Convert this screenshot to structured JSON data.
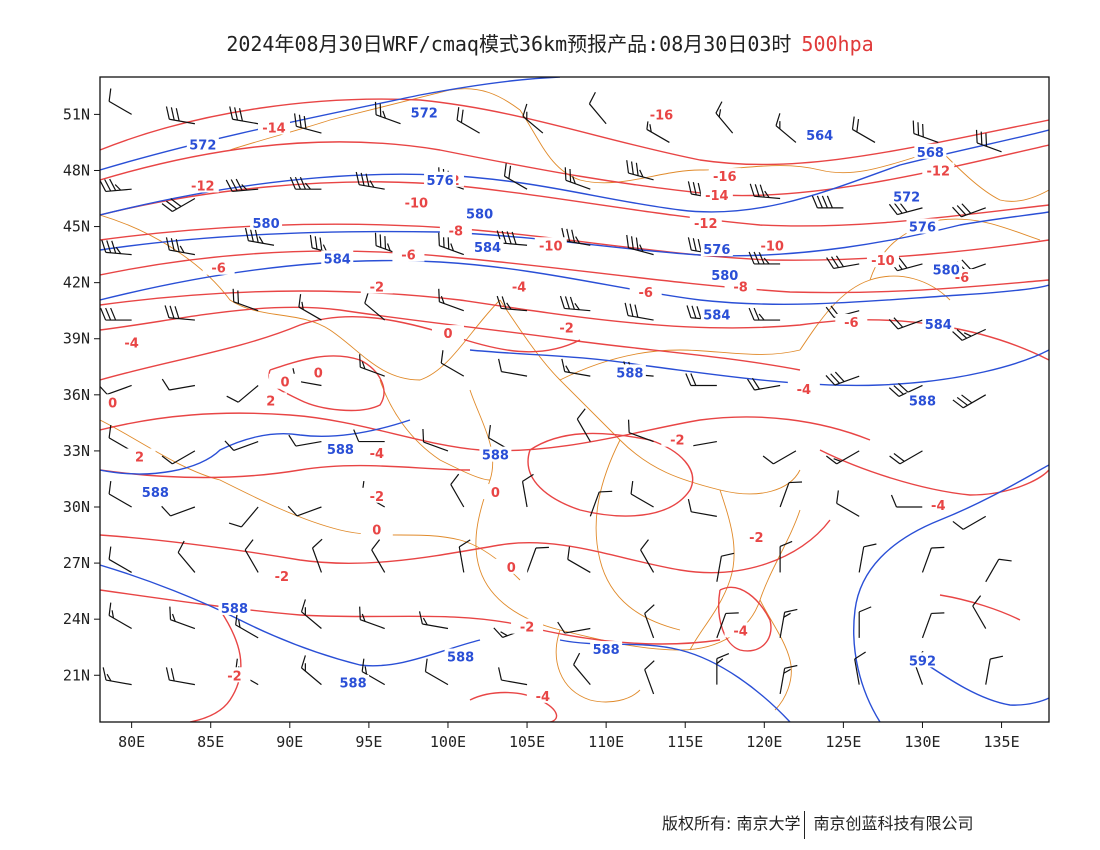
{
  "title": {
    "main": "2024年08月30日WRF/cmaq模式36km预报产品:08月30日03时",
    "level": "500hpa",
    "level_color": "#e03a3a"
  },
  "colors": {
    "temperature": "#e84545",
    "height": "#2a4fd6",
    "boundary": "#e08a2a",
    "wind": "#111111"
  },
  "axes": {
    "lon_ticks": [
      "80E",
      "85E",
      "90E",
      "95E",
      "100E",
      "105E",
      "110E",
      "115E",
      "120E",
      "125E",
      "130E",
      "135E"
    ],
    "lat_ticks": [
      "51N",
      "48N",
      "45N",
      "42N",
      "39N",
      "36N",
      "33N",
      "30N",
      "27N",
      "24N",
      "21N"
    ]
  },
  "chart_data": {
    "type": "contour",
    "temperature_labels": [
      {
        "text": "-14",
        "lon": 89.0,
        "lat": 50.3
      },
      {
        "text": "-12",
        "lon": 100.0,
        "lat": 47.5
      },
      {
        "text": "-12",
        "lon": 84.5,
        "lat": 47.2
      },
      {
        "text": "-10",
        "lon": 98.0,
        "lat": 46.3
      },
      {
        "text": "-8",
        "lon": 100.5,
        "lat": 44.8
      },
      {
        "text": "-6",
        "lon": 97.5,
        "lat": 43.5
      },
      {
        "text": "-6",
        "lon": 85.5,
        "lat": 42.8
      },
      {
        "text": "-4",
        "lon": 104.5,
        "lat": 41.8
      },
      {
        "text": "-2",
        "lon": 95.5,
        "lat": 41.8
      },
      {
        "text": "-10",
        "lon": 106.5,
        "lat": 44.0
      },
      {
        "text": "-16",
        "lon": 113.5,
        "lat": 51.0
      },
      {
        "text": "-16",
        "lon": 117.5,
        "lat": 47.7
      },
      {
        "text": "-14",
        "lon": 117.0,
        "lat": 46.7
      },
      {
        "text": "-12",
        "lon": 116.3,
        "lat": 45.2
      },
      {
        "text": "-12",
        "lon": 131.0,
        "lat": 48.0
      },
      {
        "text": "-10",
        "lon": 120.5,
        "lat": 44.0
      },
      {
        "text": "-10",
        "lon": 127.5,
        "lat": 43.2
      },
      {
        "text": "-8",
        "lon": 118.5,
        "lat": 41.8
      },
      {
        "text": "-6",
        "lon": 112.5,
        "lat": 41.5
      },
      {
        "text": "-6",
        "lon": 132.5,
        "lat": 42.3
      },
      {
        "text": "-6",
        "lon": 125.5,
        "lat": 39.9
      },
      {
        "text": "-4",
        "lon": 80.0,
        "lat": 38.8
      },
      {
        "text": "-2",
        "lon": 107.5,
        "lat": 39.6
      },
      {
        "text": "-4",
        "lon": 122.5,
        "lat": 36.3
      },
      {
        "text": "-2",
        "lon": 114.5,
        "lat": 33.6
      },
      {
        "text": "-4",
        "lon": 95.5,
        "lat": 32.9
      },
      {
        "text": "-2",
        "lon": 95.5,
        "lat": 30.6
      },
      {
        "text": "-2",
        "lon": 119.5,
        "lat": 28.4
      },
      {
        "text": "-2",
        "lon": 89.5,
        "lat": 26.3
      },
      {
        "text": "-2",
        "lon": 105.0,
        "lat": 23.6
      },
      {
        "text": "-4",
        "lon": 118.5,
        "lat": 23.4
      },
      {
        "text": "-2",
        "lon": 86.5,
        "lat": 21.0
      },
      {
        "text": "-4",
        "lon": 106.0,
        "lat": 19.9
      },
      {
        "text": "-4",
        "lon": 131.0,
        "lat": 30.1
      },
      {
        "text": "0",
        "lon": 100.0,
        "lat": 39.3
      },
      {
        "text": "0",
        "lon": 91.8,
        "lat": 37.2
      },
      {
        "text": "0",
        "lon": 89.7,
        "lat": 36.7
      },
      {
        "text": "0",
        "lon": 78.8,
        "lat": 35.6
      },
      {
        "text": "2",
        "lon": 88.8,
        "lat": 35.7
      },
      {
        "text": "2",
        "lon": 80.5,
        "lat": 32.7
      },
      {
        "text": "0",
        "lon": 103.0,
        "lat": 30.8
      },
      {
        "text": "0",
        "lon": 104.0,
        "lat": 26.8
      },
      {
        "text": "0",
        "lon": 95.5,
        "lat": 28.8
      }
    ],
    "height_labels": [
      {
        "text": "572",
        "lon": 98.5,
        "lat": 51.1
      },
      {
        "text": "572",
        "lon": 84.5,
        "lat": 49.4
      },
      {
        "text": "576",
        "lon": 99.5,
        "lat": 47.5
      },
      {
        "text": "580",
        "lon": 102.0,
        "lat": 45.7
      },
      {
        "text": "580",
        "lon": 88.5,
        "lat": 45.2
      },
      {
        "text": "584",
        "lon": 93.0,
        "lat": 43.3
      },
      {
        "text": "584",
        "lon": 102.5,
        "lat": 43.9
      },
      {
        "text": "564",
        "lon": 123.5,
        "lat": 49.9
      },
      {
        "text": "568",
        "lon": 130.5,
        "lat": 49.0
      },
      {
        "text": "572",
        "lon": 129.0,
        "lat": 46.6
      },
      {
        "text": "576",
        "lon": 130.0,
        "lat": 45.0
      },
      {
        "text": "576",
        "lon": 117.0,
        "lat": 43.8
      },
      {
        "text": "580",
        "lon": 117.5,
        "lat": 42.4
      },
      {
        "text": "580",
        "lon": 131.5,
        "lat": 42.7
      },
      {
        "text": "584",
        "lon": 117.0,
        "lat": 40.3
      },
      {
        "text": "584",
        "lon": 131.0,
        "lat": 39.8
      },
      {
        "text": "588",
        "lon": 111.5,
        "lat": 37.2
      },
      {
        "text": "588",
        "lon": 130.0,
        "lat": 35.7
      },
      {
        "text": "588",
        "lon": 93.2,
        "lat": 33.1
      },
      {
        "text": "588",
        "lon": 103.0,
        "lat": 32.8
      },
      {
        "text": "588",
        "lon": 81.5,
        "lat": 30.8
      },
      {
        "text": "588",
        "lon": 86.5,
        "lat": 24.6
      },
      {
        "text": "588",
        "lon": 100.8,
        "lat": 22.0
      },
      {
        "text": "588",
        "lon": 110.0,
        "lat": 22.4
      },
      {
        "text": "588",
        "lon": 94.0,
        "lat": 20.6
      },
      {
        "text": "592",
        "lon": 130.0,
        "lat": 21.8
      }
    ],
    "winds": [
      {
        "lon": 80,
        "lat": 51,
        "dir": 300,
        "spd": 8
      },
      {
        "lon": 84,
        "lat": 50.5,
        "dir": 280,
        "spd": 24
      },
      {
        "lon": 88,
        "lat": 50.5,
        "dir": 280,
        "spd": 24
      },
      {
        "lon": 92,
        "lat": 50,
        "dir": 285,
        "spd": 24
      },
      {
        "lon": 97,
        "lat": 50.5,
        "dir": 290,
        "spd": 20
      },
      {
        "lon": 102,
        "lat": 50,
        "dir": 300,
        "spd": 16
      },
      {
        "lon": 106,
        "lat": 50,
        "dir": 310,
        "spd": 12
      },
      {
        "lon": 110,
        "lat": 50.5,
        "dir": 320,
        "spd": 8
      },
      {
        "lon": 114,
        "lat": 49.5,
        "dir": 300,
        "spd": 12
      },
      {
        "lon": 118,
        "lat": 50,
        "dir": 320,
        "spd": 12
      },
      {
        "lon": 122,
        "lat": 49.5,
        "dir": 310,
        "spd": 12
      },
      {
        "lon": 127,
        "lat": 49.5,
        "dir": 300,
        "spd": 16
      },
      {
        "lon": 131,
        "lat": 49.5,
        "dir": 290,
        "spd": 24
      },
      {
        "lon": 135,
        "lat": 49,
        "dir": 290,
        "spd": 24
      },
      {
        "lon": 80,
        "lat": 47,
        "dir": 265,
        "spd": 28
      },
      {
        "lon": 84,
        "lat": 46.5,
        "dir": 240,
        "spd": 24
      },
      {
        "lon": 88,
        "lat": 47,
        "dir": 265,
        "spd": 28
      },
      {
        "lon": 92,
        "lat": 47,
        "dir": 270,
        "spd": 28
      },
      {
        "lon": 96,
        "lat": 47,
        "dir": 280,
        "spd": 28
      },
      {
        "lon": 101,
        "lat": 47,
        "dir": 290,
        "spd": 28
      },
      {
        "lon": 105,
        "lat": 47,
        "dir": 300,
        "spd": 16
      },
      {
        "lon": 109,
        "lat": 47,
        "dir": 290,
        "spd": 20
      },
      {
        "lon": 113,
        "lat": 47.5,
        "dir": 285,
        "spd": 28
      },
      {
        "lon": 117,
        "lat": 46.5,
        "dir": 280,
        "spd": 28
      },
      {
        "lon": 121,
        "lat": 46.5,
        "dir": 275,
        "spd": 28
      },
      {
        "lon": 125,
        "lat": 46,
        "dir": 270,
        "spd": 32
      },
      {
        "lon": 130,
        "lat": 46,
        "dir": 255,
        "spd": 24
      },
      {
        "lon": 134,
        "lat": 46,
        "dir": 250,
        "spd": 24
      },
      {
        "lon": 80,
        "lat": 43.5,
        "dir": 275,
        "spd": 28
      },
      {
        "lon": 84,
        "lat": 43.5,
        "dir": 280,
        "spd": 28
      },
      {
        "lon": 89,
        "lat": 44,
        "dir": 280,
        "spd": 28
      },
      {
        "lon": 93,
        "lat": 43.5,
        "dir": 285,
        "spd": 28
      },
      {
        "lon": 97,
        "lat": 43.5,
        "dir": 290,
        "spd": 28
      },
      {
        "lon": 101,
        "lat": 43.5,
        "dir": 290,
        "spd": 28
      },
      {
        "lon": 105,
        "lat": 44,
        "dir": 275,
        "spd": 32
      },
      {
        "lon": 109,
        "lat": 44,
        "dir": 280,
        "spd": 28
      },
      {
        "lon": 113,
        "lat": 43.5,
        "dir": 285,
        "spd": 28
      },
      {
        "lon": 117,
        "lat": 43.5,
        "dir": 280,
        "spd": 28
      },
      {
        "lon": 121,
        "lat": 43,
        "dir": 270,
        "spd": 28
      },
      {
        "lon": 126,
        "lat": 43,
        "dir": 260,
        "spd": 24
      },
      {
        "lon": 130,
        "lat": 43,
        "dir": 255,
        "spd": 24
      },
      {
        "lon": 134,
        "lat": 43,
        "dir": 250,
        "spd": 24
      },
      {
        "lon": 80,
        "lat": 40,
        "dir": 270,
        "spd": 24
      },
      {
        "lon": 84,
        "lat": 40,
        "dir": 275,
        "spd": 24
      },
      {
        "lon": 88,
        "lat": 40.5,
        "dir": 290,
        "spd": 16
      },
      {
        "lon": 92,
        "lat": 40,
        "dir": 300,
        "spd": 12
      },
      {
        "lon": 96,
        "lat": 40,
        "dir": 310,
        "spd": 8
      },
      {
        "lon": 101,
        "lat": 40.5,
        "dir": 290,
        "spd": 12
      },
      {
        "lon": 105,
        "lat": 40.5,
        "dir": 275,
        "spd": 20
      },
      {
        "lon": 109,
        "lat": 40.5,
        "dir": 275,
        "spd": 28
      },
      {
        "lon": 113,
        "lat": 40,
        "dir": 280,
        "spd": 24
      },
      {
        "lon": 117,
        "lat": 40,
        "dir": 275,
        "spd": 24
      },
      {
        "lon": 121,
        "lat": 40,
        "dir": 270,
        "spd": 20
      },
      {
        "lon": 126,
        "lat": 40.5,
        "dir": 255,
        "spd": 16
      },
      {
        "lon": 130,
        "lat": 40,
        "dir": 250,
        "spd": 16
      },
      {
        "lon": 134,
        "lat": 39.5,
        "dir": 245,
        "spd": 20
      },
      {
        "lon": 80,
        "lat": 36.5,
        "dir": 250,
        "spd": 8
      },
      {
        "lon": 84,
        "lat": 36.5,
        "dir": 260,
        "spd": 8
      },
      {
        "lon": 88,
        "lat": 36.5,
        "dir": 230,
        "spd": 8
      },
      {
        "lon": 92,
        "lat": 36.5,
        "dir": 280,
        "spd": 12
      },
      {
        "lon": 96,
        "lat": 37,
        "dir": 290,
        "spd": 12
      },
      {
        "lon": 101,
        "lat": 37,
        "dir": 300,
        "spd": 8
      },
      {
        "lon": 105,
        "lat": 37,
        "dir": 280,
        "spd": 8
      },
      {
        "lon": 109,
        "lat": 37,
        "dir": 280,
        "spd": 12
      },
      {
        "lon": 113,
        "lat": 37,
        "dir": 275,
        "spd": 16
      },
      {
        "lon": 117,
        "lat": 36.5,
        "dir": 270,
        "spd": 16
      },
      {
        "lon": 121,
        "lat": 36.5,
        "dir": 260,
        "spd": 16
      },
      {
        "lon": 126,
        "lat": 37,
        "dir": 250,
        "spd": 24
      },
      {
        "lon": 130,
        "lat": 36.5,
        "dir": 245,
        "spd": 24
      },
      {
        "lon": 134,
        "lat": 36,
        "dir": 240,
        "spd": 24
      },
      {
        "lon": 80,
        "lat": 33,
        "dir": 300,
        "spd": 8
      },
      {
        "lon": 84,
        "lat": 33,
        "dir": 240,
        "spd": 8
      },
      {
        "lon": 88,
        "lat": 33.5,
        "dir": 250,
        "spd": 8
      },
      {
        "lon": 92,
        "lat": 33.5,
        "dir": 260,
        "spd": 8
      },
      {
        "lon": 96,
        "lat": 33.5,
        "dir": 270,
        "spd": 8
      },
      {
        "lon": 100,
        "lat": 33,
        "dir": 290,
        "spd": 8
      },
      {
        "lon": 104,
        "lat": 33,
        "dir": 300,
        "spd": 8
      },
      {
        "lon": 109,
        "lat": 33.5,
        "dir": 330,
        "spd": 8
      },
      {
        "lon": 113,
        "lat": 33.5,
        "dir": 290,
        "spd": 8
      },
      {
        "lon": 117,
        "lat": 33.5,
        "dir": 260,
        "spd": 8
      },
      {
        "lon": 122,
        "lat": 33,
        "dir": 240,
        "spd": 8
      },
      {
        "lon": 126,
        "lat": 33,
        "dir": 240,
        "spd": 12
      },
      {
        "lon": 130,
        "lat": 33,
        "dir": 240,
        "spd": 16
      },
      {
        "lon": 80,
        "lat": 30,
        "dir": 300,
        "spd": 8
      },
      {
        "lon": 84,
        "lat": 30,
        "dir": 250,
        "spd": 8
      },
      {
        "lon": 88,
        "lat": 30,
        "dir": 220,
        "spd": 8
      },
      {
        "lon": 92,
        "lat": 30,
        "dir": 250,
        "spd": 8
      },
      {
        "lon": 96,
        "lat": 30,
        "dir": 300,
        "spd": 8
      },
      {
        "lon": 101,
        "lat": 30,
        "dir": 330,
        "spd": 8
      },
      {
        "lon": 105,
        "lat": 30,
        "dir": 350,
        "spd": 8
      },
      {
        "lon": 109,
        "lat": 29.5,
        "dir": 20,
        "spd": 8
      },
      {
        "lon": 113,
        "lat": 30,
        "dir": 300,
        "spd": 8
      },
      {
        "lon": 117,
        "lat": 29.5,
        "dir": 280,
        "spd": 8
      },
      {
        "lon": 121,
        "lat": 30,
        "dir": 20,
        "spd": 8
      },
      {
        "lon": 126,
        "lat": 29.5,
        "dir": 300,
        "spd": 8
      },
      {
        "lon": 130,
        "lat": 30,
        "dir": 270,
        "spd": 8
      },
      {
        "lon": 134,
        "lat": 29.5,
        "dir": 240,
        "spd": 8
      },
      {
        "lon": 80,
        "lat": 26.5,
        "dir": 300,
        "spd": 8
      },
      {
        "lon": 84,
        "lat": 26.5,
        "dir": 320,
        "spd": 8
      },
      {
        "lon": 88,
        "lat": 26.5,
        "dir": 330,
        "spd": 8
      },
      {
        "lon": 92,
        "lat": 26.5,
        "dir": 340,
        "spd": 8
      },
      {
        "lon": 96,
        "lat": 26.5,
        "dir": 330,
        "spd": 8
      },
      {
        "lon": 101,
        "lat": 26.5,
        "dir": 350,
        "spd": 8
      },
      {
        "lon": 105,
        "lat": 26.5,
        "dir": 20,
        "spd": 8
      },
      {
        "lon": 109,
        "lat": 26.5,
        "dir": 300,
        "spd": 8
      },
      {
        "lon": 113,
        "lat": 26.5,
        "dir": 330,
        "spd": 8
      },
      {
        "lon": 117,
        "lat": 26,
        "dir": 10,
        "spd": 8
      },
      {
        "lon": 121,
        "lat": 26.5,
        "dir": 0,
        "spd": 8
      },
      {
        "lon": 126,
        "lat": 26.5,
        "dir": 10,
        "spd": 8
      },
      {
        "lon": 130,
        "lat": 26.5,
        "dir": 20,
        "spd": 8
      },
      {
        "lon": 134,
        "lat": 26,
        "dir": 30,
        "spd": 8
      },
      {
        "lon": 80,
        "lat": 23.5,
        "dir": 300,
        "spd": 12
      },
      {
        "lon": 84,
        "lat": 23.5,
        "dir": 290,
        "spd": 12
      },
      {
        "lon": 88,
        "lat": 23,
        "dir": 300,
        "spd": 12
      },
      {
        "lon": 92,
        "lat": 23.5,
        "dir": 310,
        "spd": 12
      },
      {
        "lon": 96,
        "lat": 23.5,
        "dir": 290,
        "spd": 12
      },
      {
        "lon": 100,
        "lat": 23.5,
        "dir": 280,
        "spd": 12
      },
      {
        "lon": 105,
        "lat": 23.5,
        "dir": 250,
        "spd": 12
      },
      {
        "lon": 109,
        "lat": 23.5,
        "dir": 260,
        "spd": 8
      },
      {
        "lon": 113,
        "lat": 23,
        "dir": 340,
        "spd": 8
      },
      {
        "lon": 117,
        "lat": 23,
        "dir": 20,
        "spd": 8
      },
      {
        "lon": 121,
        "lat": 23,
        "dir": 10,
        "spd": 12
      },
      {
        "lon": 126,
        "lat": 23,
        "dir": 0,
        "spd": 8
      },
      {
        "lon": 130,
        "lat": 23,
        "dir": 20,
        "spd": 8
      },
      {
        "lon": 134,
        "lat": 23.5,
        "dir": 330,
        "spd": 8
      },
      {
        "lon": 80,
        "lat": 20.5,
        "dir": 280,
        "spd": 12
      },
      {
        "lon": 84,
        "lat": 20.5,
        "dir": 280,
        "spd": 16
      },
      {
        "lon": 88,
        "lat": 20.5,
        "dir": 300,
        "spd": 12
      },
      {
        "lon": 92,
        "lat": 20.5,
        "dir": 310,
        "spd": 12
      },
      {
        "lon": 96,
        "lat": 20.5,
        "dir": 300,
        "spd": 12
      },
      {
        "lon": 100,
        "lat": 20.5,
        "dir": 300,
        "spd": 8
      },
      {
        "lon": 105,
        "lat": 20.5,
        "dir": 280,
        "spd": 8
      },
      {
        "lon": 109,
        "lat": 20.5,
        "dir": 320,
        "spd": 8
      },
      {
        "lon": 113,
        "lat": 20,
        "dir": 340,
        "spd": 8
      },
      {
        "lon": 117,
        "lat": 20.5,
        "dir": 0,
        "spd": 12
      },
      {
        "lon": 121,
        "lat": 20,
        "dir": 10,
        "spd": 12
      },
      {
        "lon": 126,
        "lat": 20.5,
        "dir": 350,
        "spd": 8
      },
      {
        "lon": 130,
        "lat": 20.5,
        "dir": 340,
        "spd": 8
      },
      {
        "lon": 134,
        "lat": 20.5,
        "dir": 10,
        "spd": 8
      }
    ]
  },
  "footer": {
    "copyright": "版权所有: 南京大学",
    "company": "南京创蓝科技有限公司"
  }
}
